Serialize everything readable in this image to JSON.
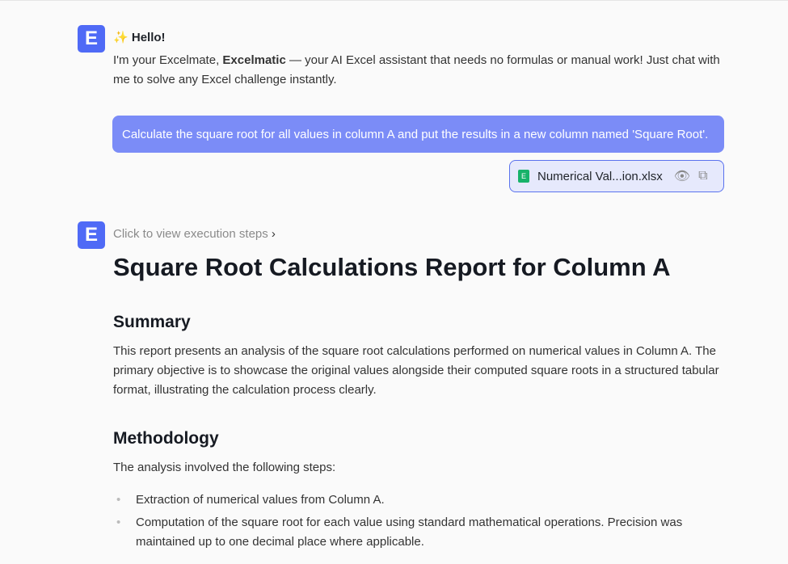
{
  "assistant_logo": "E",
  "greeting": {
    "emoji": "✨",
    "title": "Hello!",
    "intro_pre": "I'm your Excelmate, ",
    "intro_bold": "Excelmatic",
    "intro_post": " — your AI Excel assistant that needs no formulas or manual work! Just chat with me to solve any Excel challenge instantly."
  },
  "user_message": "Calculate the square root for all values in column A and put the results in a new column named 'Square Root'.",
  "attachment": {
    "name": "Numerical Val...ion.xlsx",
    "icon_letter": "E",
    "icons": [
      "eye-icon",
      "copy-icon"
    ]
  },
  "execution_steps_label": "Click to view execution steps",
  "report": {
    "title": "Square Root Calculations Report for Column A",
    "summary_heading": "Summary",
    "summary_text": "This report presents an analysis of the square root calculations performed on numerical values in Column A. The primary objective is to showcase the original values alongside their computed square roots in a structured tabular format, illustrating the calculation process clearly.",
    "methodology_heading": "Methodology",
    "methodology_intro": "The analysis involved the following steps:",
    "steps": [
      "Extraction of numerical values from Column A.",
      "Computation of the square root for each value using standard mathematical operations. Precision was maintained up to one decimal place where applicable."
    ]
  }
}
